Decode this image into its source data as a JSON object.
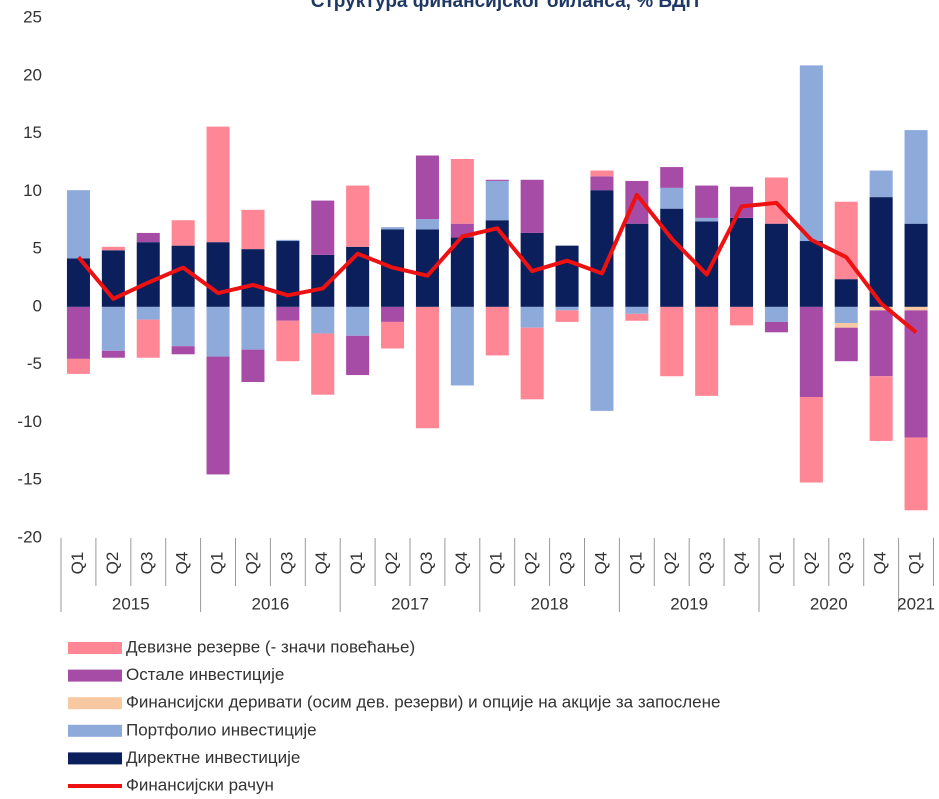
{
  "chart_data": {
    "type": "bar",
    "stacked": true,
    "title": "Структура финансијског биланса, % БДП",
    "categories": [
      "Q1",
      "Q2",
      "Q3",
      "Q4",
      "Q1",
      "Q2",
      "Q3",
      "Q4",
      "Q1",
      "Q2",
      "Q3",
      "Q4",
      "Q1",
      "Q2",
      "Q3",
      "Q4",
      "Q1",
      "Q2",
      "Q3",
      "Q4",
      "Q1",
      "Q2",
      "Q3",
      "Q4",
      "Q1"
    ],
    "years": [
      "2015",
      "2016",
      "2017",
      "2018",
      "2019",
      "2020",
      "2021"
    ],
    "ylim": [
      -20,
      25
    ],
    "yticks": [
      -20,
      -15,
      -10,
      -5,
      0,
      5,
      10,
      15,
      20,
      25
    ],
    "series": [
      {
        "name": "Девизне резерве (- значи повећање)",
        "color": "#ff8795",
        "values": [
          -1.3,
          0.3,
          -3.3,
          2.2,
          10.0,
          3.4,
          -3.5,
          -5.3,
          5.3,
          -2.3,
          -10.5,
          5.6,
          -4.2,
          -6.2,
          -1.0,
          0.5,
          -0.6,
          -6.0,
          -7.7,
          -1.6,
          4.0,
          -7.4,
          6.7,
          -5.6,
          -6.3
        ]
      },
      {
        "name": "Остале инвестиције",
        "color": "#a64ca6",
        "values": [
          -4.5,
          -0.6,
          0.8,
          -0.7,
          -10.2,
          -2.8,
          -1.2,
          4.7,
          -3.4,
          -1.3,
          5.5,
          1.2,
          0.1,
          4.6,
          0,
          1.2,
          3.7,
          1.8,
          2.8,
          2.7,
          -0.9,
          -7.8,
          -2.9,
          -5.7,
          -11.0
        ]
      },
      {
        "name": "Финансијски деривати (осим дев. резерви) и опције на акције за запослене",
        "color": "#f8c8a0",
        "values": [
          0,
          0,
          0,
          0,
          0,
          0,
          0,
          0,
          0,
          0,
          0,
          0,
          0,
          0,
          0,
          0,
          0,
          0,
          0,
          0,
          0,
          0,
          -0.4,
          -0.3,
          -0.3
        ]
      },
      {
        "name": "Портфолио инвестиције",
        "color": "#8eaadb",
        "values": [
          5.9,
          -3.8,
          -1.1,
          -3.4,
          -4.3,
          -3.7,
          0.1,
          -2.3,
          -2.5,
          0.2,
          0.9,
          -6.8,
          3.4,
          -1.8,
          -0.3,
          -9.0,
          -0.6,
          1.8,
          0.3,
          0,
          -1.3,
          15.2,
          -1.4,
          2.3,
          8.1
        ]
      },
      {
        "name": "Директне инвестиције",
        "color": "#0a1f5c",
        "values": [
          4.2,
          4.9,
          5.6,
          5.3,
          5.6,
          5.0,
          5.7,
          4.5,
          5.2,
          6.7,
          6.7,
          6.0,
          7.5,
          6.4,
          5.3,
          10.1,
          7.2,
          8.5,
          7.4,
          7.7,
          7.2,
          5.7,
          2.4,
          9.5,
          7.2
        ]
      },
      {
        "name": "Финансијски рачун",
        "color": "#ee1111",
        "type": "line",
        "values": [
          4.3,
          0.7,
          2.1,
          3.4,
          1.2,
          1.9,
          1.0,
          1.6,
          4.6,
          3.4,
          2.7,
          6.1,
          6.8,
          3.1,
          4.0,
          2.9,
          9.7,
          5.9,
          2.8,
          8.7,
          9.0,
          5.8,
          4.3,
          0.3,
          -2.2
        ]
      }
    ]
  }
}
